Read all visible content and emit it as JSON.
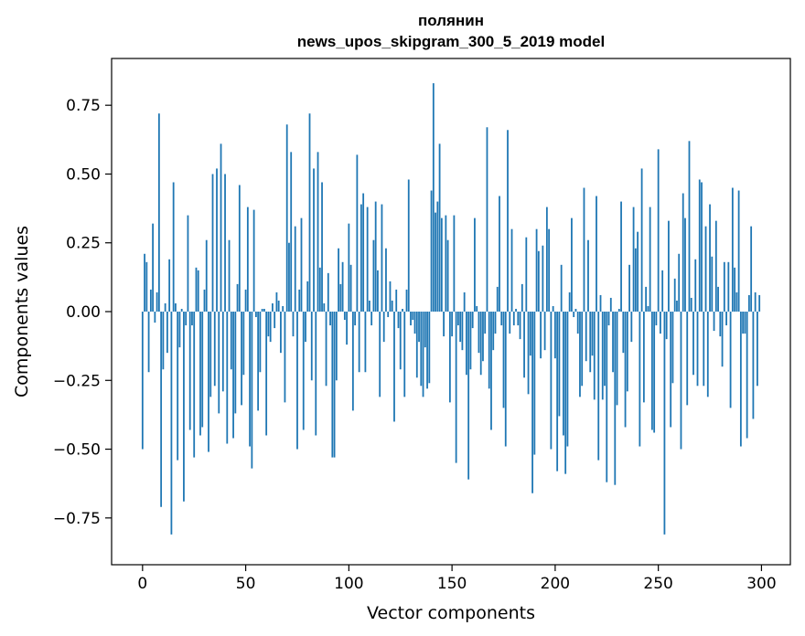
{
  "chart_data": {
    "type": "bar",
    "title": "полянин",
    "subtitle": "news_upos_skipgram_300_5_2019 model",
    "xlabel": "Vector components",
    "ylabel": "Components values",
    "xlim": [
      -15,
      314
    ],
    "ylim": [
      -0.92,
      0.92
    ],
    "x_ticks": [
      0,
      50,
      100,
      150,
      200,
      250,
      300
    ],
    "x_tick_labels": [
      "0",
      "50",
      "100",
      "150",
      "200",
      "250",
      "300"
    ],
    "y_ticks": [
      -0.75,
      -0.5,
      -0.25,
      0.0,
      0.25,
      0.5,
      0.75
    ],
    "y_tick_labels": [
      "−0.75",
      "−0.50",
      "−0.25",
      "0.00",
      "0.25",
      "0.50",
      "0.75"
    ],
    "bar_color": "#1f77b4",
    "grid": false,
    "values": [
      -0.5,
      0.21,
      0.18,
      -0.22,
      0.08,
      0.32,
      -0.04,
      0.07,
      0.72,
      -0.71,
      -0.21,
      0.03,
      -0.15,
      0.19,
      -0.81,
      0.47,
      0.03,
      -0.54,
      -0.13,
      0.01,
      -0.69,
      -0.05,
      0.35,
      -0.43,
      -0.05,
      -0.53,
      0.16,
      0.15,
      -0.45,
      -0.42,
      0.08,
      0.26,
      -0.51,
      -0.31,
      0.5,
      -0.27,
      0.52,
      -0.37,
      0.61,
      -0.29,
      0.5,
      -0.48,
      0.26,
      -0.21,
      -0.46,
      -0.37,
      0.1,
      0.46,
      -0.34,
      -0.23,
      0.08,
      0.38,
      -0.49,
      -0.57,
      0.37,
      -0.02,
      -0.36,
      -0.22,
      0.01,
      0.01,
      -0.45,
      -0.09,
      -0.11,
      0.03,
      -0.06,
      0.07,
      0.04,
      -0.15,
      0.02,
      -0.33,
      0.68,
      0.25,
      0.58,
      -0.09,
      0.31,
      -0.5,
      0.08,
      0.34,
      -0.43,
      -0.11,
      0.11,
      0.72,
      -0.25,
      0.52,
      -0.45,
      0.58,
      0.16,
      0.47,
      0.03,
      -0.27,
      0.14,
      -0.05,
      -0.53,
      -0.53,
      -0.25,
      0.23,
      0.1,
      0.18,
      -0.03,
      -0.12,
      0.32,
      0.17,
      -0.36,
      -0.05,
      0.57,
      -0.22,
      0.39,
      0.43,
      -0.22,
      0.38,
      0.04,
      -0.05,
      0.26,
      0.4,
      0.15,
      -0.31,
      0.39,
      -0.11,
      0.23,
      -0.02,
      0.11,
      0.04,
      -0.4,
      0.08,
      -0.06,
      -0.21,
      0.01,
      -0.31,
      0.08,
      0.48,
      -0.05,
      -0.03,
      -0.08,
      -0.24,
      -0.11,
      -0.27,
      -0.31,
      -0.13,
      -0.28,
      -0.26,
      0.44,
      0.83,
      0.36,
      0.4,
      0.61,
      0.34,
      -0.09,
      0.35,
      0.26,
      -0.33,
      -0.09,
      0.35,
      -0.55,
      -0.05,
      -0.11,
      -0.14,
      0.07,
      -0.23,
      -0.61,
      -0.21,
      -0.06,
      0.34,
      0.02,
      -0.15,
      -0.23,
      -0.18,
      -0.08,
      0.67,
      -0.28,
      -0.43,
      -0.14,
      -0.08,
      0.09,
      0.42,
      -0.05,
      -0.35,
      -0.49,
      0.66,
      -0.08,
      0.3,
      -0.05,
      0.01,
      -0.05,
      -0.1,
      0.1,
      -0.24,
      0.27,
      -0.3,
      -0.16,
      -0.66,
      -0.52,
      0.3,
      0.22,
      -0.17,
      0.24,
      -0.14,
      0.38,
      0.3,
      -0.5,
      0.02,
      -0.17,
      -0.58,
      -0.38,
      0.17,
      -0.45,
      -0.59,
      -0.49,
      0.07,
      0.34,
      -0.02,
      0.01,
      -0.08,
      -0.31,
      -0.27,
      0.45,
      -0.18,
      0.26,
      -0.22,
      -0.16,
      -0.32,
      0.42,
      -0.54,
      0.06,
      -0.32,
      -0.27,
      -0.62,
      -0.05,
      0.05,
      -0.22,
      -0.63,
      -0.34,
      0.01,
      0.4,
      -0.15,
      -0.42,
      -0.29,
      0.17,
      -0.11,
      0.38,
      0.23,
      0.29,
      -0.49,
      0.52,
      -0.33,
      0.09,
      0.02,
      0.38,
      -0.43,
      -0.44,
      -0.05,
      0.59,
      -0.08,
      0.15,
      -0.81,
      -0.1,
      0.33,
      -0.42,
      -0.26,
      0.12,
      0.04,
      0.21,
      -0.5,
      0.43,
      0.34,
      -0.34,
      0.62,
      0.05,
      -0.23,
      0.19,
      -0.27,
      0.48,
      0.47,
      -0.27,
      0.31,
      -0.31,
      0.39,
      0.2,
      -0.07,
      0.33,
      0.09,
      -0.09,
      -0.2,
      0.18,
      -0.05,
      0.18,
      -0.35,
      0.45,
      0.16,
      0.07,
      0.44,
      -0.49,
      -0.08,
      -0.08,
      -0.46,
      0.06,
      0.31,
      -0.39,
      0.07,
      -0.27,
      0.06
    ]
  }
}
